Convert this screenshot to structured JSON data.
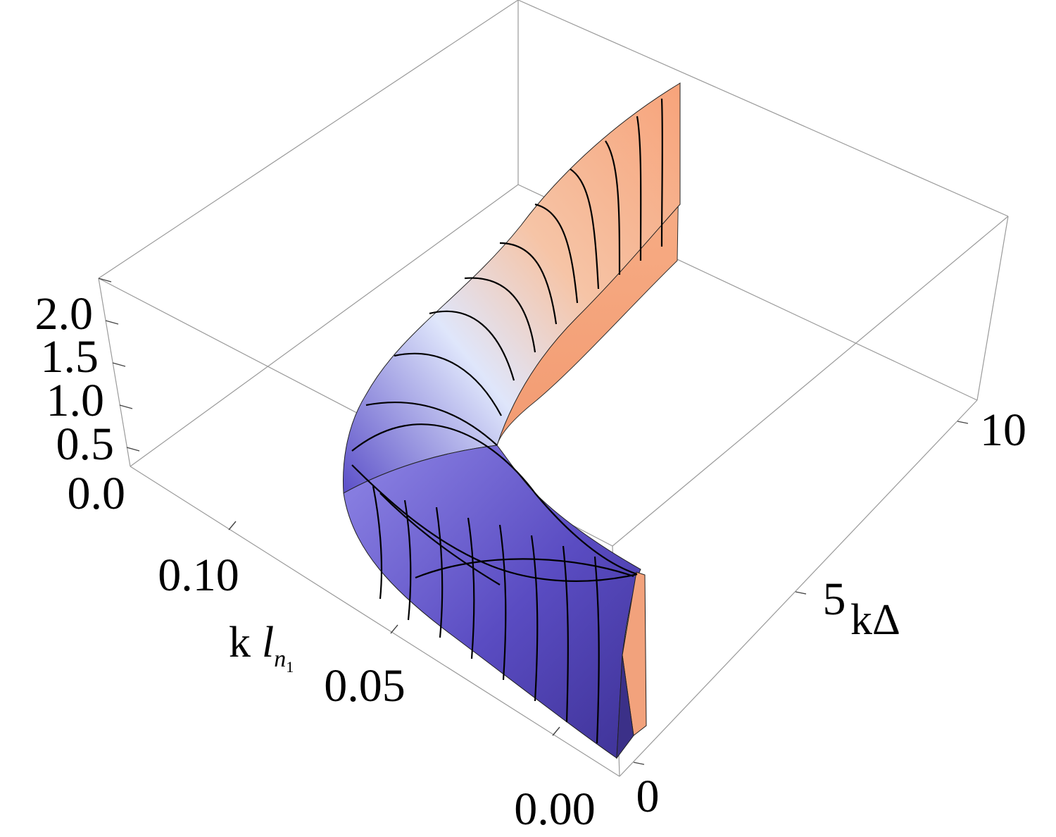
{
  "chart_data": {
    "type": "surface3d",
    "title": "",
    "axes": {
      "x": {
        "label_main": "k",
        "label_italic": "l",
        "label_sub": "n",
        "label_subsub": "1",
        "range": [
          0.0,
          0.13
        ],
        "ticks": [
          "0.00",
          "0.05",
          "0.10"
        ]
      },
      "y": {
        "label": "kΔ",
        "range": [
          0,
          12
        ],
        "ticks": [
          "0",
          "5",
          "10"
        ]
      },
      "z": {
        "label": "",
        "range": [
          0.0,
          2.2
        ],
        "ticks": [
          "0.0",
          "0.5",
          "1.0",
          "1.5",
          "2.0"
        ]
      }
    },
    "box": true,
    "mesh": true,
    "colors": {
      "low": "#4a3ea8",
      "mid": "#e8eefc",
      "high": "#f7a37a",
      "mesh": "#000000",
      "box": "#9a9a9a"
    }
  }
}
